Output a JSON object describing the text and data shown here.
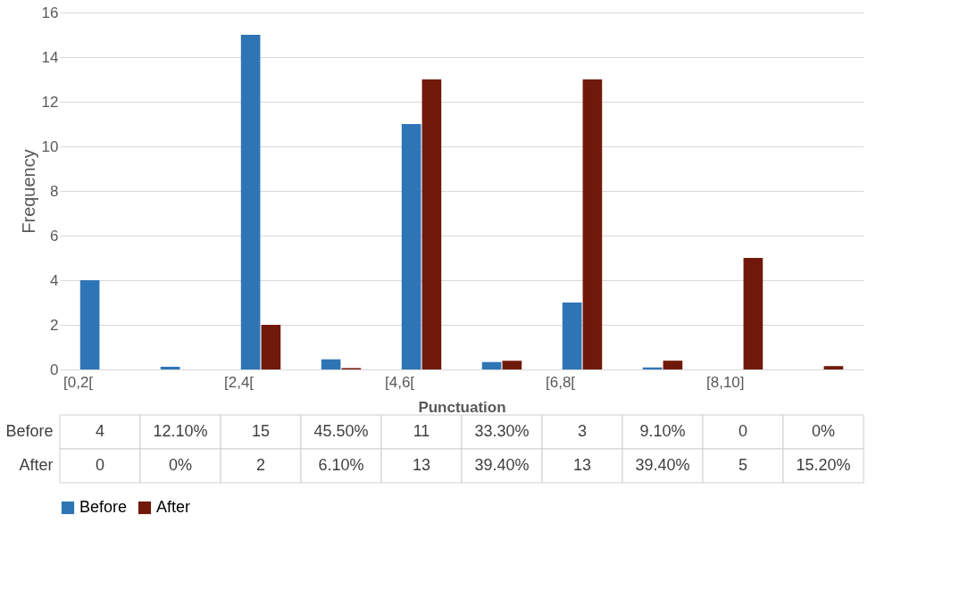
{
  "chart_data": {
    "type": "bar",
    "xlabel": "Punctuation",
    "ylabel": "Frequency",
    "categories": [
      "[0,2[",
      null,
      "[2,4[",
      null,
      "[4,6[",
      null,
      "[6,8[",
      null,
      "[8,10]",
      null
    ],
    "series": [
      {
        "name": "Before",
        "color": "#2e75b6",
        "values": [
          4,
          0.121,
          15,
          0.455,
          11,
          0.333,
          3,
          0.091,
          0,
          0
        ],
        "value_labels": [
          "4",
          "12.10%",
          "15",
          "45.50%",
          "11",
          "33.30%",
          "3",
          "9.10%",
          "0",
          "0%"
        ]
      },
      {
        "name": "After",
        "color": "#70190a",
        "values": [
          0,
          0,
          2,
          0.061,
          13,
          0.394,
          13,
          0.394,
          5,
          0.152
        ],
        "value_labels": [
          "0",
          "0%",
          "2",
          "6.10%",
          "13",
          "39.40%",
          "13",
          "39.40%",
          "5",
          "15.20%"
        ]
      }
    ],
    "ylim": [
      0,
      16
    ],
    "yticks": [
      0,
      2,
      4,
      6,
      8,
      10,
      12,
      14,
      16
    ],
    "grid": "y",
    "legend": "bottom"
  }
}
